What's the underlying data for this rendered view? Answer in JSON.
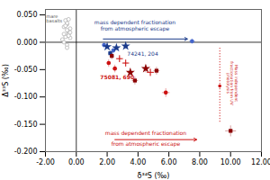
{
  "chart_data": {
    "type": "scatter",
    "xlabel": "δ³⁴S (‰)",
    "ylabel": "Δ³³S (‰)",
    "xlim": [
      -2.0,
      12.0
    ],
    "ylim": [
      -0.2,
      0.06
    ],
    "xticks": [
      {
        "value": -2.0,
        "label": "-2.00"
      },
      {
        "value": 0.0,
        "label": "0.00"
      },
      {
        "value": 2.0,
        "label": "2.00"
      },
      {
        "value": 4.0,
        "label": "4.00"
      },
      {
        "value": 6.0,
        "label": "6.00"
      },
      {
        "value": 8.0,
        "label": "8.00"
      },
      {
        "value": 10.0,
        "label": "10.00"
      },
      {
        "value": 12.0,
        "label": "12.00"
      }
    ],
    "yticks": [
      {
        "value": -0.2,
        "label": "-0.200"
      },
      {
        "value": -0.15,
        "label": "-0.150"
      },
      {
        "value": -0.1,
        "label": "-0.100"
      },
      {
        "value": -0.05,
        "label": "-0.050"
      },
      {
        "value": 0.0,
        "label": "0.000"
      },
      {
        "value": 0.05,
        "label": "0.050"
      }
    ],
    "grid": false,
    "reference_lines": {
      "x": [
        0.0
      ],
      "y": [
        0.0
      ]
    },
    "series": [
      {
        "marker": "open_circle",
        "color": "#aaaaaa",
        "x": [
          -0.8,
          -0.6,
          -0.5,
          -0.4,
          -0.7,
          -0.6,
          -0.5,
          -0.9,
          -0.4,
          -0.7,
          -0.6,
          -0.5,
          -0.8,
          -0.6,
          -0.5,
          -0.7,
          -0.4,
          -0.6,
          -0.8
        ],
        "values": [
          0.028,
          0.033,
          0.018,
          0.025,
          0.01,
          0.035,
          0.015,
          0.005,
          0.008,
          0.04,
          -0.005,
          0.042,
          0.0,
          0.022,
          0.012,
          0.03,
          0.018,
          -0.01,
          0.015
        ]
      },
      {
        "marker": "circle",
        "color": "#4466cc",
        "x": [
          1.8,
          2.4,
          7.5
        ],
        "values": [
          -0.005,
          -0.015,
          0.002
        ],
        "xerr": [
          0.15,
          0.15,
          0.2
        ],
        "yerr": [
          0.006,
          0.006,
          0.005
        ]
      },
      {
        "marker": "square",
        "color": "#1a3a8a",
        "x": [
          2.2
        ],
        "values": [
          -0.02
        ],
        "xerr": [
          0.15
        ],
        "yerr": [
          0.006
        ]
      },
      {
        "marker": "star",
        "color": "#1a3a8a",
        "x": [
          2.0,
          2.6,
          3.2
        ],
        "values": [
          -0.008,
          -0.01,
          -0.007
        ],
        "xerr": [
          0.12,
          0.12,
          0.15
        ],
        "yerr": [
          0.005,
          0.005,
          0.005
        ]
      },
      {
        "marker": "circle",
        "color": "#cc1111",
        "x": [
          2.1,
          2.5,
          5.8
        ],
        "values": [
          -0.038,
          -0.048,
          -0.092
        ],
        "xerr": [
          0.15,
          0.15,
          0.25
        ],
        "yerr": [
          0.007,
          0.007,
          0.008
        ]
      },
      {
        "marker": "square",
        "color": "#8b0000",
        "x": [
          2.3,
          3.8,
          5.2,
          10.0
        ],
        "values": [
          -0.025,
          -0.07,
          -0.052,
          -0.162
        ],
        "xerr": [
          0.15,
          0.2,
          0.2,
          0.35
        ],
        "yerr": [
          0.006,
          0.007,
          0.007,
          0.01
        ]
      },
      {
        "marker": "star",
        "color": "#8b0000",
        "x": [
          3.5,
          4.5
        ],
        "values": [
          -0.055,
          -0.048
        ],
        "xerr": [
          0.2,
          0.2
        ],
        "yerr": [
          0.007,
          0.007
        ]
      },
      {
        "marker": "open_plus",
        "color": "#cc1111",
        "x": [
          2.8,
          3.2,
          4.8
        ],
        "values": [
          -0.03,
          -0.038,
          -0.055
        ],
        "xerr": [
          0.15,
          0.15,
          0.2
        ],
        "yerr": [
          0.006,
          0.006,
          0.007
        ]
      }
    ],
    "annotations": [
      {
        "type": "arrow",
        "x1": 1.75,
        "x2": 7.2,
        "y": 0.006,
        "color": "#1a3a8a"
      },
      {
        "type": "text",
        "text": "mass dependent fractionation",
        "x": 3.8,
        "y": 0.033,
        "color": "#1a3a8a"
      },
      {
        "type": "text",
        "text": "from atmospheric escape",
        "x": 3.8,
        "y": 0.021,
        "color": "#1a3a8a"
      },
      {
        "type": "arrow",
        "x1": 2.5,
        "x2": 7.8,
        "y": -0.178,
        "color": "#cc1111"
      },
      {
        "type": "text",
        "text": "mass dependent fractionation",
        "x": 4.5,
        "y": -0.17,
        "color": "#cc1111"
      },
      {
        "type": "text",
        "text": "from atmospheric escape",
        "x": 4.5,
        "y": -0.182,
        "color": "#cc1111"
      },
      {
        "type": "line",
        "x": 9.3,
        "y1": -0.01,
        "y2": -0.148,
        "color": "#cc1111",
        "line_style": "dotted"
      },
      {
        "type": "dot",
        "x": 9.3,
        "y": -0.08,
        "color": "#cc1111"
      },
      {
        "type": "text",
        "text": "Mass independent\nfractionation from UV\nphotolysis",
        "x": 9.75,
        "y": -0.075,
        "color": "#cc1111"
      },
      {
        "type": "text",
        "text": "75081, 690",
        "x": 1.55,
        "y": -0.06,
        "color": "#cc1111"
      },
      {
        "type": "text",
        "text": "74241, 204",
        "x": 3.3,
        "y": -0.018,
        "color": "#1a3a8a"
      },
      {
        "type": "text",
        "text": "mare\nbasalts",
        "x": -1.95,
        "y": 0.05,
        "color": "#555555"
      }
    ]
  }
}
